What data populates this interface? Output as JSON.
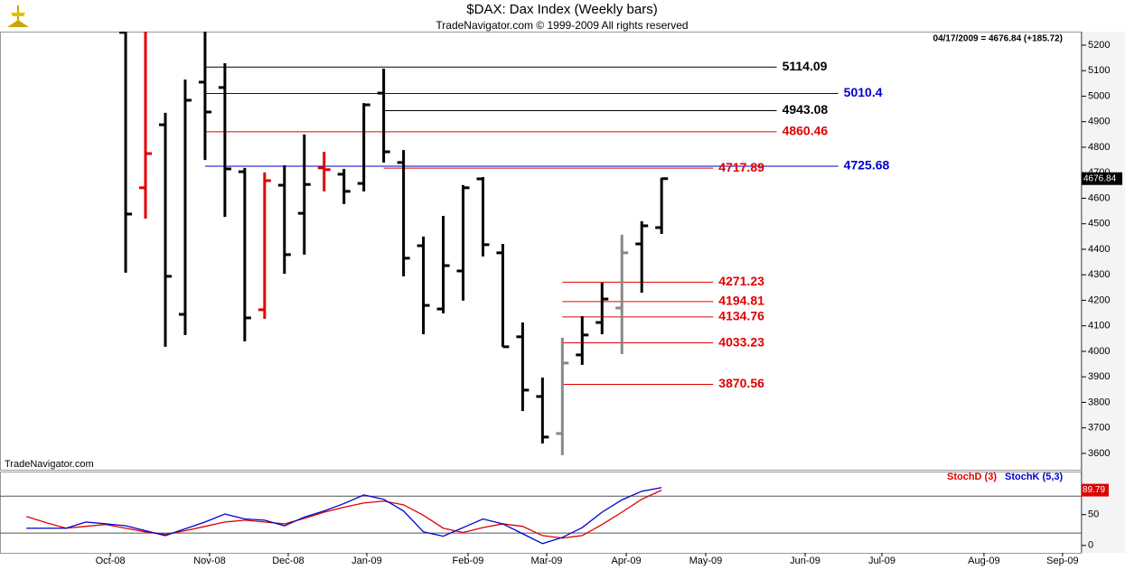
{
  "chart_data": [
    {
      "type": "ohlc",
      "title": "$DAX:  Dax Index  (Weekly bars)",
      "subtitle": "TradeNavigator.com © 1999-2009 All rights reserved",
      "header": "04/17/2009 = 4676.84 (+185.72)",
      "watermark": "TradeNavigator.com",
      "xlim": [
        -6.33,
        48.16
      ],
      "ylim": [
        3536,
        5253
      ],
      "yticks": [
        3600,
        3700,
        3800,
        3900,
        4000,
        4100,
        4200,
        4300,
        4400,
        4500,
        4600,
        4700,
        4800,
        4900,
        5000,
        5100,
        5200
      ],
      "x": [
        0,
        1,
        2,
        3,
        4,
        5,
        6,
        7,
        8,
        9,
        10,
        11,
        12,
        13,
        14,
        15,
        16,
        17,
        18,
        19,
        20,
        21,
        22,
        23,
        24,
        25,
        26,
        27
      ],
      "open": [
        5250,
        4641,
        4888,
        4145,
        5055,
        5034,
        4704,
        4163,
        4651,
        4541,
        4719,
        4694,
        4658,
        5012,
        4740,
        4414,
        4166,
        4315,
        4676,
        4386,
        4057,
        3823,
        3678,
        3986,
        4113,
        4170,
        4421,
        4485
      ],
      "high": [
        5300,
        5300,
        4935,
        5065,
        5300,
        5129,
        4719,
        4701,
        4729,
        4850,
        4782,
        4715,
        4973,
        5108,
        4789,
        4450,
        4531,
        4651,
        4683,
        4421,
        4113,
        3897,
        4053,
        4138,
        4269,
        4457,
        4510,
        4680
      ],
      "low": [
        4308,
        4520,
        4018,
        4064,
        4750,
        4527,
        4039,
        4127,
        4304,
        4379,
        4627,
        4577,
        4627,
        4740,
        4294,
        4067,
        4149,
        4199,
        4372,
        4018,
        3766,
        3639,
        3593,
        3947,
        4067,
        3989,
        4230,
        4460
      ],
      "close": [
        4538,
        4775,
        4294,
        4984,
        4938,
        4715,
        4131,
        4669,
        4379,
        4654,
        4712,
        4627,
        4966,
        4782,
        4365,
        4180,
        4336,
        4641,
        4418,
        4018,
        3848,
        3664,
        3954,
        4064,
        4205,
        4386,
        4492,
        4676.84
      ],
      "colors": [
        "#000000",
        "#e00000",
        "#000000",
        "#000000",
        "#000000",
        "#000000",
        "#000000",
        "#e00000",
        "#000000",
        "#000000",
        "#e00000",
        "#000000",
        "#000000",
        "#000000",
        "#000000",
        "#000000",
        "#000000",
        "#000000",
        "#000000",
        "#000000",
        "#000000",
        "#000000",
        "#888888",
        "#000000",
        "#000000",
        "#888888",
        "#000000",
        "#000000"
      ],
      "last_price": 4676.84,
      "levels": [
        {
          "value": 5114.09,
          "color": "#000000",
          "from": 4,
          "to": 32.8
        },
        {
          "value": 5010.4,
          "label": "5010.40",
          "color": "#0000cc",
          "from": 4,
          "to": 35.9
        },
        {
          "value": 4943.08,
          "color": "#000000",
          "from": 13,
          "to": 32.8
        },
        {
          "value": 4860.46,
          "color": "#e00000",
          "from": 4,
          "to": 32.8
        },
        {
          "value": 4725.68,
          "color": "#0000cc",
          "from": 4,
          "to": 35.9
        },
        {
          "value": 4717.89,
          "color": "#e00000",
          "from": 13,
          "to": 29.6
        },
        {
          "value": 4271.23,
          "color": "#e00000",
          "from": 22,
          "to": 29.6
        },
        {
          "value": 4194.81,
          "color": "#e00000",
          "from": 22,
          "to": 29.6
        },
        {
          "value": 4134.76,
          "color": "#e00000",
          "from": 22,
          "to": 29.6
        },
        {
          "value": 4033.23,
          "color": "#e00000",
          "from": 22,
          "to": 29.6
        },
        {
          "value": 3870.56,
          "color": "#e00000",
          "from": 22,
          "to": 29.6
        }
      ]
    },
    {
      "type": "line",
      "xlim": [
        -6.33,
        48.16
      ],
      "ylim": [
        -12,
        120
      ],
      "yticks": [
        0,
        50
      ],
      "levels": [
        20,
        80
      ],
      "xticks": [
        {
          "value": -0.77,
          "label": "Oct-08"
        },
        {
          "value": 4.23,
          "label": "Nov-08"
        },
        {
          "value": 8.19,
          "label": "Dec-08"
        },
        {
          "value": 12.15,
          "label": "Jan-09"
        },
        {
          "value": 17.25,
          "label": "Feb-09"
        },
        {
          "value": 21.21,
          "label": "Mar-09"
        },
        {
          "value": 25.22,
          "label": "Apr-09"
        },
        {
          "value": 29.22,
          "label": "May-09"
        },
        {
          "value": 34.23,
          "label": "Jun-09"
        },
        {
          "value": 38.1,
          "label": "Jul-09"
        },
        {
          "value": 43.24,
          "label": "Aug-09"
        },
        {
          "value": 47.2,
          "label": "Sep-09"
        }
      ],
      "x": [
        -5,
        -4,
        -3,
        -2,
        -1,
        0,
        1,
        2,
        3,
        4,
        5,
        6,
        7,
        8,
        9,
        10,
        11,
        12,
        13,
        14,
        15,
        16,
        17,
        18,
        19,
        20,
        21,
        22,
        23,
        24,
        25,
        26,
        27
      ],
      "series": [
        {
          "name": "StochD (3)",
          "color": "#e00000",
          "values": [
            47,
            37,
            28,
            31,
            34,
            28,
            22,
            18,
            24,
            31,
            38,
            41,
            38,
            35,
            44,
            54,
            62,
            69,
            72,
            66,
            49,
            28,
            21,
            29,
            35,
            31,
            16,
            12,
            16,
            34,
            54,
            75,
            89.79
          ]
        },
        {
          "name": "StochK (5,3)",
          "color": "#0000cc",
          "values": [
            28,
            28,
            28,
            38,
            35,
            32,
            24,
            16,
            27,
            38,
            51,
            43,
            41,
            32,
            46,
            56,
            68,
            82,
            75,
            56,
            22,
            15,
            29,
            43,
            35,
            19,
            3,
            13,
            29,
            54,
            74,
            88,
            94
          ]
        }
      ]
    }
  ]
}
